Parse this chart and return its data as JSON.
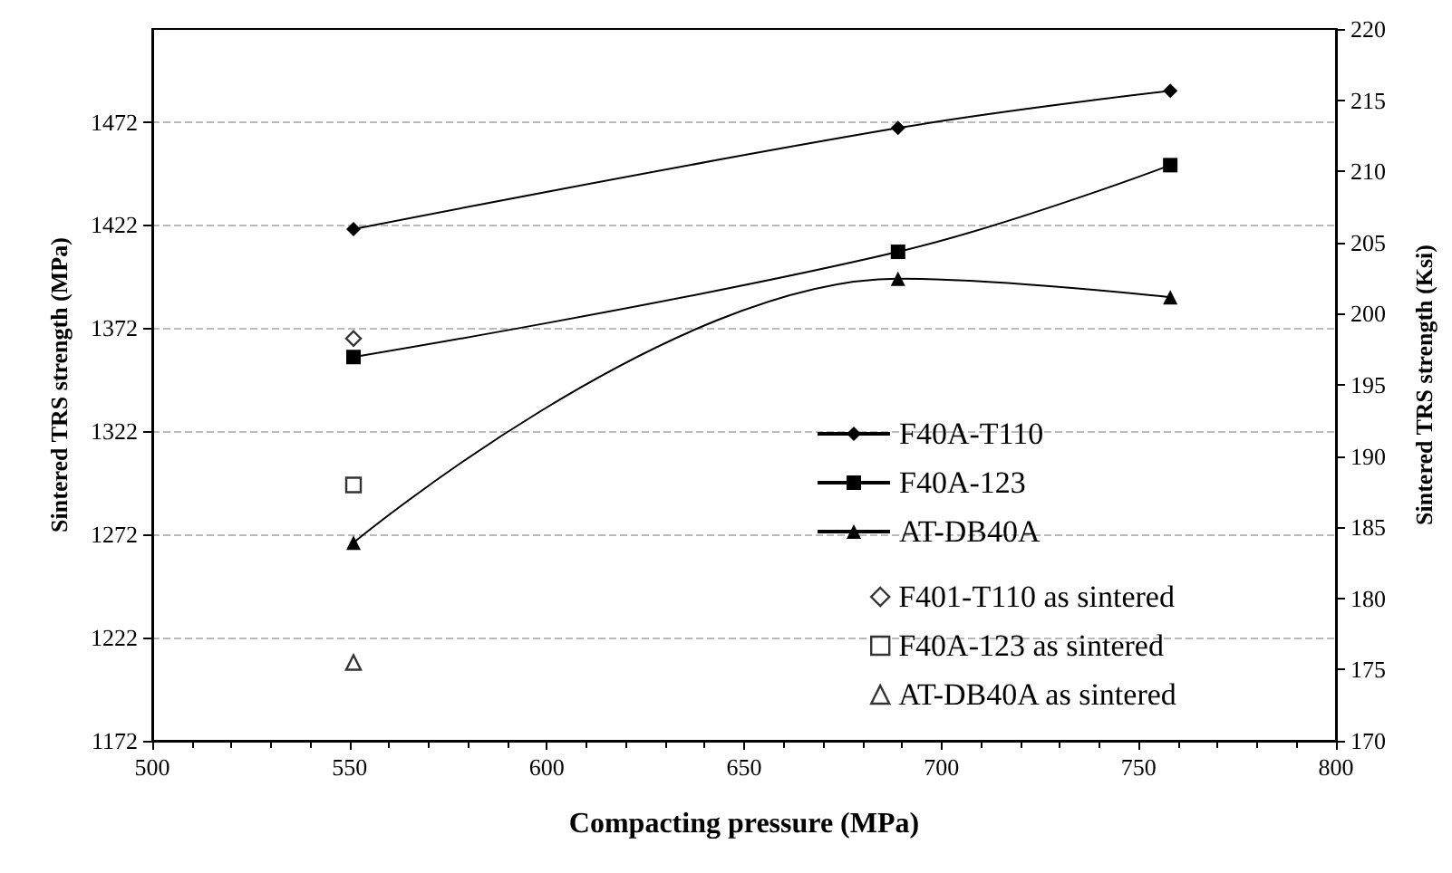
{
  "chart_data": {
    "type": "line",
    "xlabel": "Compacting pressure (MPa)",
    "ylabel": "Sintered TRS strength (MPa)",
    "y2label": "Sintered TRS strength (Ksi)",
    "x": [
      551,
      689,
      758
    ],
    "series": [
      {
        "name": "F40A-T110",
        "color": "#000000",
        "marker": "diamond",
        "values": [
          1420,
          1469,
          1487
        ]
      },
      {
        "name": "F40A-123",
        "color": "#000000",
        "marker": "square",
        "values": [
          1358,
          1409,
          1451
        ]
      },
      {
        "name": "AT-DB40A",
        "color": "#000000",
        "marker": "triangle",
        "values": [
          1268,
          1396,
          1387
        ]
      },
      {
        "name": "F401-T110 as sintered",
        "type": "scatter",
        "color": "#000000",
        "marker": "diamond",
        "values": [
          1367,
          null,
          null
        ]
      },
      {
        "name": "F40A-123 as sintered",
        "type": "scatter",
        "color": "#000000",
        "marker": "square",
        "values": [
          1296,
          null,
          null
        ]
      },
      {
        "name": "AT-DB40A as sintered",
        "type": "scatter",
        "color": "#000000",
        "marker": "triangle",
        "values": [
          1210,
          null,
          null
        ]
      }
    ],
    "xlim": [
      500,
      800
    ],
    "xticks": [
      500,
      550,
      600,
      650,
      700,
      750,
      800
    ],
    "ylim": [
      1172,
      1517
    ],
    "yticks": [
      1172,
      1222,
      1272,
      1322,
      1372,
      1422,
      1472
    ],
    "y2lim": [
      170,
      220
    ],
    "y2ticks": [
      170,
      175,
      180,
      185,
      190,
      195,
      200,
      205,
      210,
      215,
      220
    ],
    "grid": "y",
    "legend": "right",
    "line_style": "solid"
  }
}
